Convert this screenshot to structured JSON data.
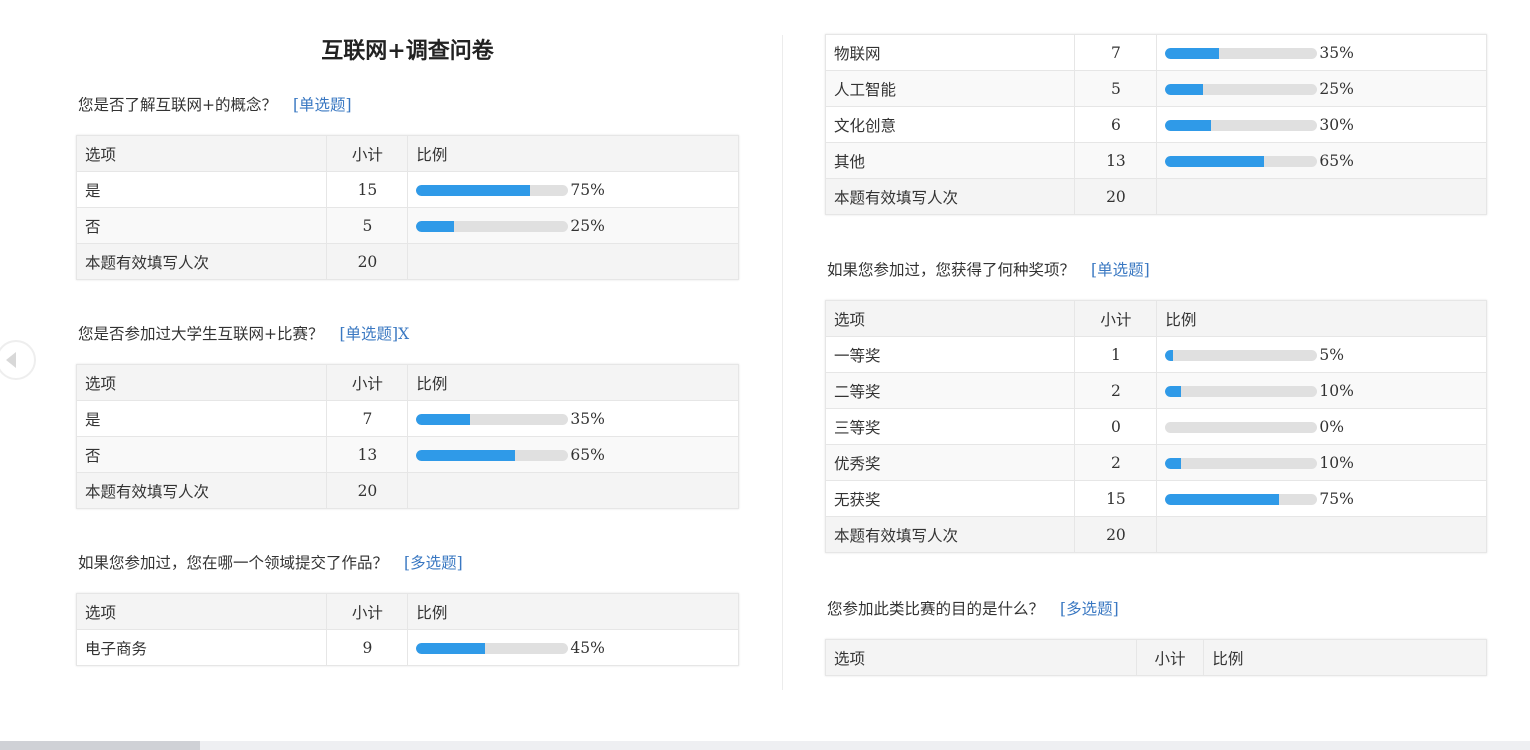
{
  "title": "互联网+调查问卷",
  "headers": {
    "option": "选项",
    "count": "小计",
    "ratio": "比例"
  },
  "total_label": "本题有效填写人次",
  "colors": {
    "bar_fill": "#2f9ae8",
    "bar_track": "#e0e0e0",
    "tag": "#3a78c2"
  },
  "questions": [
    {
      "text": "您是否了解互联网+的概念？",
      "tag": "[单选题]",
      "show_header": true,
      "rows": [
        {
          "option": "是",
          "count": "15",
          "percent": 75,
          "label": "75%"
        },
        {
          "option": "否",
          "count": "5",
          "percent": 25,
          "label": "25%"
        }
      ],
      "total": "20"
    },
    {
      "text": "您是否参加过大学生互联网+比赛？",
      "tag": "[单选题]X",
      "show_header": true,
      "rows": [
        {
          "option": "是",
          "count": "7",
          "percent": 35,
          "label": "35%"
        },
        {
          "option": "否",
          "count": "13",
          "percent": 65,
          "label": "65%"
        }
      ],
      "total": "20"
    },
    {
      "text": "如果您参加过，您在哪一个领域提交了作品？",
      "tag": "[多选题]",
      "show_header": true,
      "rows": [
        {
          "option": "电子商务",
          "count": "9",
          "percent": 45,
          "label": "45%"
        }
      ]
    },
    {
      "show_header": false,
      "rows": [
        {
          "option": "物联网",
          "count": "7",
          "percent": 35,
          "label": "35%"
        },
        {
          "option": "人工智能",
          "count": "5",
          "percent": 25,
          "label": "25%"
        },
        {
          "option": "文化创意",
          "count": "6",
          "percent": 30,
          "label": "30%"
        },
        {
          "option": "其他",
          "count": "13",
          "percent": 65,
          "label": "65%"
        }
      ],
      "total": "20"
    },
    {
      "text": "如果您参加过，您获得了何种奖项？",
      "tag": "[单选题]",
      "show_header": true,
      "rows": [
        {
          "option": "一等奖",
          "count": "1",
          "percent": 5,
          "label": "5%"
        },
        {
          "option": "二等奖",
          "count": "2",
          "percent": 10,
          "label": "10%"
        },
        {
          "option": "三等奖",
          "count": "0",
          "percent": 0,
          "label": "0%"
        },
        {
          "option": "优秀奖",
          "count": "2",
          "percent": 10,
          "label": "10%"
        },
        {
          "option": "无获奖",
          "count": "15",
          "percent": 75,
          "label": "75%"
        }
      ],
      "total": "20"
    },
    {
      "text": "您参加此类比赛的目的是什么？",
      "tag": "[多选题]",
      "show_header": true,
      "rows": []
    }
  ]
}
